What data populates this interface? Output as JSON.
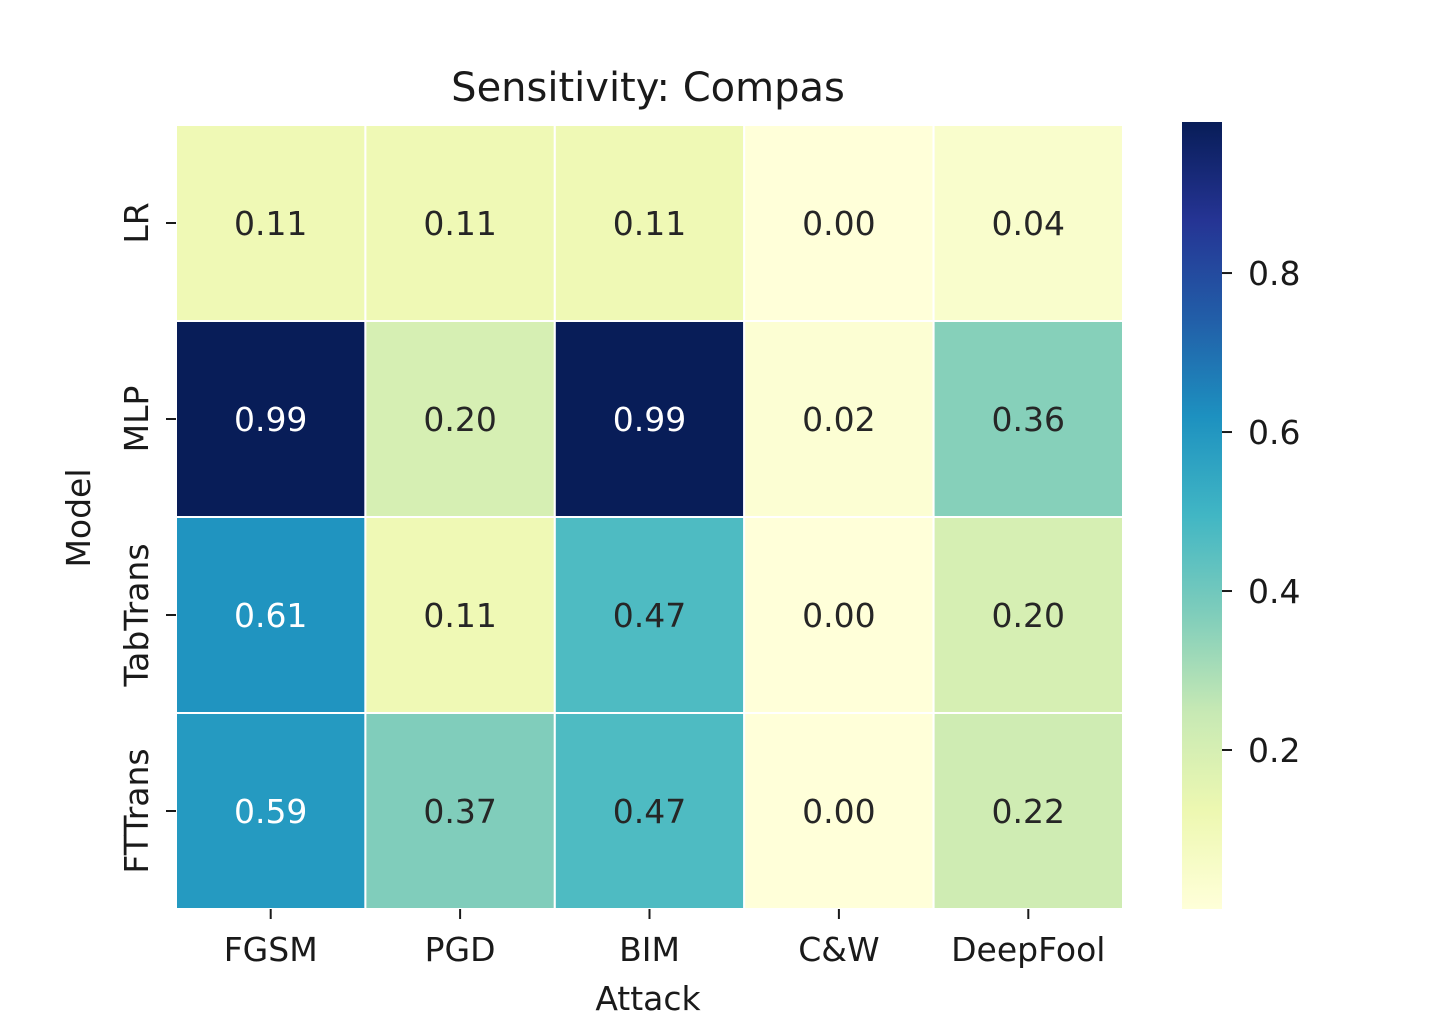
{
  "chart_data": {
    "type": "heatmap",
    "title": "Sensitivity: Compas",
    "xlabel": "Attack",
    "ylabel": "Model",
    "x_categories": [
      "FGSM",
      "PGD",
      "BIM",
      "C&W",
      "DeepFool"
    ],
    "y_categories": [
      "LR",
      "MLP",
      "TabTrans",
      "FTTrans"
    ],
    "values": [
      [
        0.11,
        0.11,
        0.11,
        0.0,
        0.04
      ],
      [
        0.99,
        0.2,
        0.99,
        0.02,
        0.36
      ],
      [
        0.61,
        0.11,
        0.47,
        0.0,
        0.2
      ],
      [
        0.59,
        0.37,
        0.47,
        0.0,
        0.22
      ]
    ],
    "cell_labels": [
      [
        "0.11",
        "0.11",
        "0.11",
        "0.00",
        "0.04"
      ],
      [
        "0.99",
        "0.20",
        "0.99",
        "0.02",
        "0.36"
      ],
      [
        "0.61",
        "0.11",
        "0.47",
        "0.00",
        "0.20"
      ],
      [
        "0.59",
        "0.37",
        "0.47",
        "0.00",
        "0.22"
      ]
    ],
    "colormap": "YlGnBu",
    "colorbar": {
      "vmin": 0.0,
      "vmax": 0.99,
      "ticks": [
        0.2,
        0.4,
        0.6,
        0.8
      ],
      "tick_labels": [
        "0.2",
        "0.4",
        "0.6",
        "0.8"
      ]
    }
  },
  "colors": {
    "ylgnbu": [
      "#ffffd9",
      "#edf8b1",
      "#c7e9b4",
      "#7fcdbb",
      "#41b6c4",
      "#1d91c0",
      "#225ea8",
      "#253494",
      "#081d58"
    ],
    "grid_line": "#ffffff",
    "text_dark": "#262626",
    "text_light": "#ffffff"
  }
}
